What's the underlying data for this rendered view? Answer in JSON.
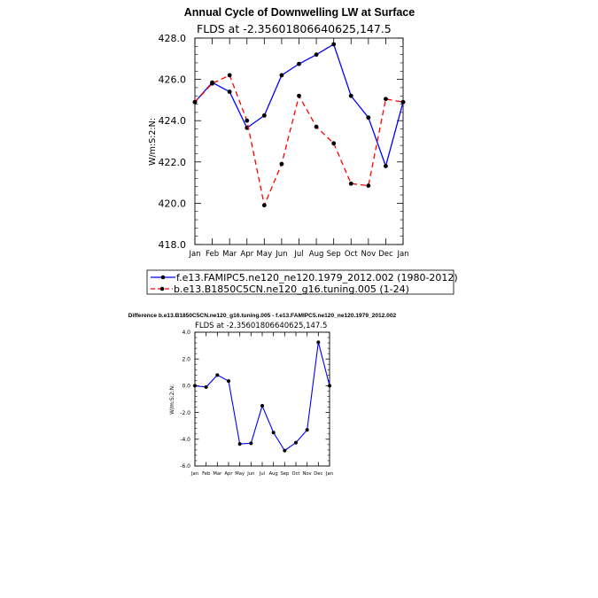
{
  "chart_data": [
    {
      "type": "line",
      "title": "Annual Cycle of Downwelling LW at Surface",
      "subtitle": "FLDS at -2.35601806640625,147.5",
      "ylabel": "W/m:S:2:N:",
      "xlabel": "",
      "categories": [
        "Jan",
        "Feb",
        "Mar",
        "Apr",
        "May",
        "Jun",
        "Jul",
        "Aug",
        "Sep",
        "Oct",
        "Nov",
        "Dec",
        "Jan"
      ],
      "ylim": [
        418.0,
        428.0
      ],
      "yticks": [
        "418.0",
        "420.0",
        "422.0",
        "424.0",
        "426.0",
        "428.0"
      ],
      "grid": false,
      "legend_placement": "bottom",
      "series": [
        {
          "name": "f.e13.FAMIPC5.ne120_ne120.1979_2012.002 (1980-2012)",
          "color": "#0000ff",
          "style": "solid",
          "values": [
            424.9,
            425.85,
            425.4,
            423.65,
            424.25,
            426.2,
            426.75,
            427.2,
            427.7,
            425.2,
            424.15,
            421.8,
            424.9
          ]
        },
        {
          "name": "b.e13.B1850C5CN.ne120_g16.tuning.005 (1-24)",
          "color": "#ff0000",
          "style": "dashed",
          "values": [
            424.9,
            425.8,
            426.2,
            424.0,
            419.9,
            421.9,
            425.2,
            423.7,
            422.9,
            420.95,
            420.85,
            425.05,
            424.9
          ]
        }
      ]
    },
    {
      "type": "line",
      "title": "Difference b.e13.B1850C5CN.ne120_g16.tuning.005 - f.e13.FAMIPC5.ne120_ne120.1979_2012.002",
      "subtitle": "FLDS at -2.35601806640625,147.5",
      "ylabel": "W/m:S:2:N:",
      "xlabel": "",
      "categories": [
        "Jan",
        "Feb",
        "Mar",
        "Apr",
        "May",
        "Jun",
        "Jul",
        "Aug",
        "Sep",
        "Oct",
        "Nov",
        "Dec",
        "Jan"
      ],
      "ylim": [
        -6.0,
        4.0
      ],
      "yticks": [
        "-6.0",
        "-4.0",
        "-2.0",
        "0.0",
        "2.0",
        "4.0"
      ],
      "grid": false,
      "series": [
        {
          "color": "#0000ff",
          "style": "solid",
          "values": [
            0.0,
            -0.1,
            0.8,
            0.35,
            -4.35,
            -4.3,
            -1.5,
            -3.5,
            -4.85,
            -4.25,
            -3.3,
            3.25,
            0.0
          ]
        }
      ]
    }
  ]
}
